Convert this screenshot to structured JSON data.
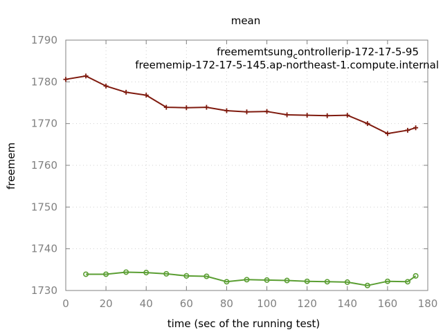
{
  "chart_data": {
    "type": "line",
    "title": "mean",
    "xlabel": "time (sec of the running test)",
    "ylabel": "freemem",
    "xlim": [
      0,
      180
    ],
    "ylim": [
      1730,
      1790
    ],
    "xticks": [
      0,
      20,
      40,
      60,
      80,
      100,
      120,
      140,
      160,
      180
    ],
    "yticks": [
      1730,
      1740,
      1750,
      1760,
      1770,
      1780,
      1790
    ],
    "grid": true,
    "legend_position": "top-right",
    "series": [
      {
        "name": "freememtsung_controllerip-172-17-5-95",
        "name_parts": [
          "freemem",
          "tsung",
          "c",
          "ontroller",
          "ip-172-17-5-95"
        ],
        "color": "#7f1a0e",
        "marker": "plus",
        "x": [
          0,
          10,
          20,
          30,
          40,
          50,
          60,
          70,
          80,
          90,
          100,
          110,
          120,
          130,
          140,
          150,
          160,
          170,
          174
        ],
        "y": [
          1780.6,
          1781.4,
          1779.0,
          1777.5,
          1776.8,
          1773.9,
          1773.8,
          1773.9,
          1773.1,
          1772.8,
          1772.9,
          1772.1,
          1772.0,
          1771.9,
          1772.0,
          1770.0,
          1767.6,
          1768.4,
          1769.0
        ]
      },
      {
        "name": "freememip-172-17-5-145.ap-northeast-1.compute.internal",
        "name_parts": [
          "freemem",
          "ip-172-17-5-145.ap-northeast-1.compute.internal"
        ],
        "color": "#5a9e32",
        "marker": "circle",
        "x": [
          10,
          20,
          30,
          40,
          50,
          60,
          70,
          80,
          90,
          100,
          110,
          120,
          130,
          140,
          150,
          160,
          170,
          174
        ],
        "y": [
          1733.9,
          1733.9,
          1734.4,
          1734.3,
          1734.0,
          1733.5,
          1733.4,
          1732.1,
          1732.6,
          1732.5,
          1732.4,
          1732.2,
          1732.1,
          1732.0,
          1731.2,
          1732.2,
          1732.1,
          1733.5
        ]
      }
    ]
  }
}
